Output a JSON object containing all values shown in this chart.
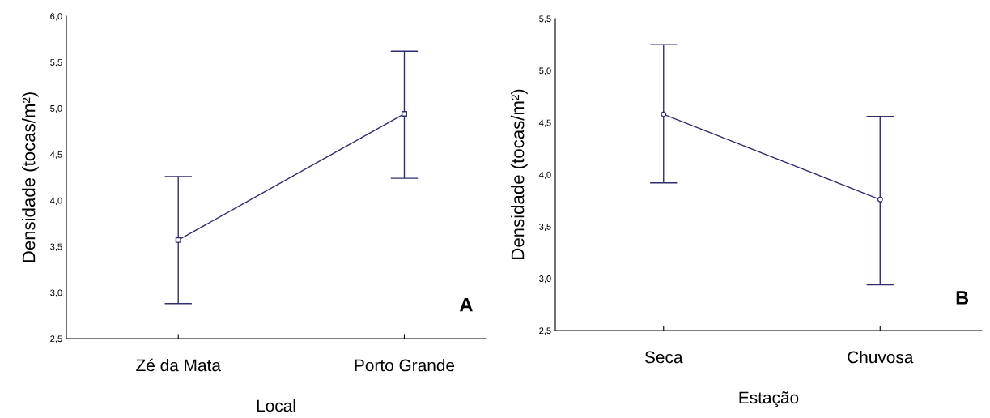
{
  "chart_data": [
    {
      "type": "line",
      "xlabel": "Local",
      "ylabel": "Densidade (tocas/m²)",
      "categories": [
        "Zé da Mata",
        "Porto Grande"
      ],
      "series": [
        {
          "color": "#2e2e6e",
          "values": [
            3.57,
            4.94
          ],
          "errors": [
            [
              2.88,
              4.26
            ],
            [
              4.24,
              5.62
            ]
          ]
        }
      ],
      "ylim": [
        2.5,
        6.0
      ],
      "yticks": [
        {
          "value": 2.5,
          "label": "2,5"
        },
        {
          "value": 3.0,
          "label": "3,0"
        },
        {
          "value": 3.5,
          "label": "3,5"
        },
        {
          "value": 4.0,
          "label": "4,0"
        },
        {
          "value": 4.5,
          "label": "4,5"
        },
        {
          "value": 5.0,
          "label": "5,0"
        },
        {
          "value": 5.5,
          "label": "5,5"
        },
        {
          "value": 6.0,
          "label": "6,0"
        }
      ],
      "marker": "square",
      "grid": false,
      "annotations": [
        "A"
      ]
    },
    {
      "type": "line",
      "xlabel": "Estação",
      "ylabel": "Densidade (tocas/m²)",
      "categories": [
        "Seca",
        "Chuvosa"
      ],
      "series": [
        {
          "color": "#2e2e6e",
          "values": [
            4.58,
            3.76
          ],
          "errors": [
            [
              3.92,
              5.25
            ],
            [
              2.94,
              4.56
            ]
          ]
        }
      ],
      "ylim": [
        2.5,
        5.5
      ],
      "yticks": [
        {
          "value": 2.5,
          "label": "2,5"
        },
        {
          "value": 3.0,
          "label": "3,0"
        },
        {
          "value": 3.5,
          "label": "3,5"
        },
        {
          "value": 4.0,
          "label": "4,0"
        },
        {
          "value": 4.5,
          "label": "4,5"
        },
        {
          "value": 5.0,
          "label": "5,0"
        },
        {
          "value": 5.5,
          "label": "5,5"
        }
      ],
      "marker": "circle",
      "grid": false,
      "annotations": [
        "B"
      ]
    }
  ]
}
